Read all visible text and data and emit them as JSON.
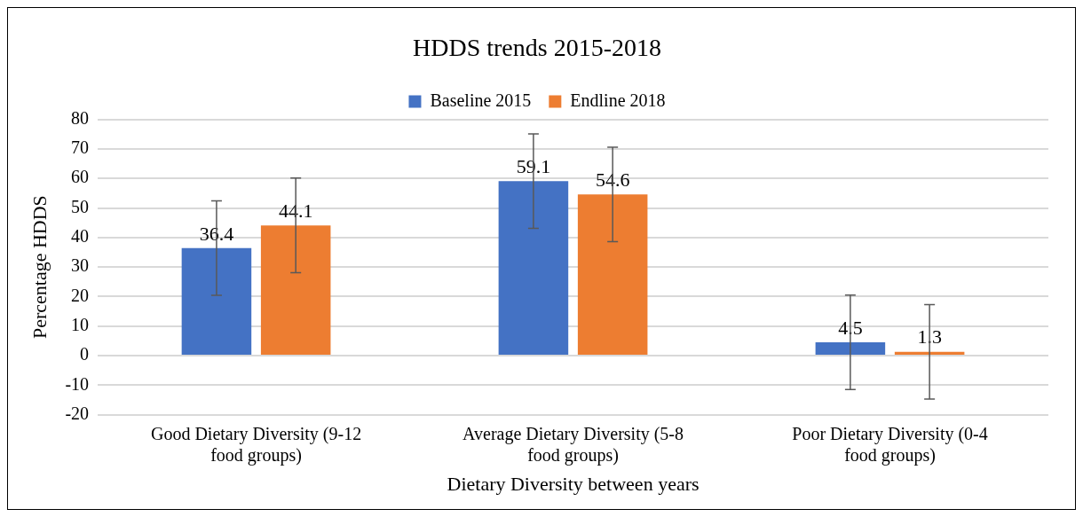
{
  "chart_data": {
    "type": "bar",
    "title": "HDDS trends 2015-2018",
    "xlabel": "Dietary Diversity between years",
    "ylabel": "Percentage HDDS",
    "categories": [
      "Good Dietary Diversity (9-12 food groups)",
      "Average Dietary Diversity (5-8 food groups)",
      "Poor Dietary Diversity (0-4 food groups)"
    ],
    "series": [
      {
        "name": "Baseline 2015",
        "color": "#4472c4",
        "values": [
          36.4,
          59.1,
          4.5
        ],
        "errors": [
          16,
          16,
          16
        ]
      },
      {
        "name": "Endline 2018",
        "color": "#ed7d31",
        "values": [
          44.1,
          54.6,
          1.3
        ],
        "errors": [
          16,
          16,
          16
        ]
      }
    ],
    "ylim": [
      -20,
      80
    ],
    "yticks": [
      -20,
      -10,
      0,
      10,
      20,
      30,
      40,
      50,
      60,
      70,
      80
    ],
    "grid": "y",
    "legend": "top",
    "data_labels": true
  }
}
